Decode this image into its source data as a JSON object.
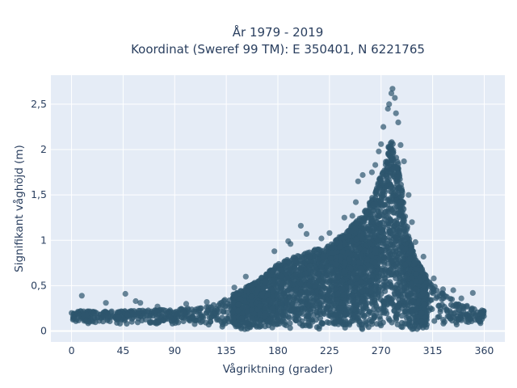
{
  "chart_data": {
    "type": "scatter",
    "title_line1": "År 1979 - 2019",
    "title_line2": "Koordinat (Sweref 99 TM): E 350401, N 6221765",
    "xlabel": "Vågriktning (grader)",
    "ylabel": "Signifikant våghöjd (m)",
    "xlim": [
      -18,
      378
    ],
    "ylim": [
      -0.12,
      2.82
    ],
    "xticks": [
      0,
      45,
      90,
      135,
      180,
      225,
      270,
      315,
      360
    ],
    "xtick_labels": [
      "0",
      "45",
      "90",
      "135",
      "180",
      "225",
      "270",
      "315",
      "360"
    ],
    "yticks": [
      0,
      0.5,
      1,
      1.5,
      2,
      2.5
    ],
    "ytick_labels": [
      "0",
      "0,5",
      "1",
      "1,5",
      "2",
      "2,5"
    ],
    "grid": true,
    "legend": "none",
    "colors": {
      "background": "#e5ecf6",
      "grid": "#ffffff",
      "marker": "#2e566e",
      "text": "#2a3f5f"
    },
    "envelope": {
      "x": [
        0,
        20,
        45,
        90,
        120,
        135,
        150,
        165,
        180,
        200,
        225,
        240,
        255,
        265,
        272,
        276,
        280,
        285,
        290,
        295,
        300,
        310,
        320,
        340,
        360
      ],
      "upper": [
        0.22,
        0.22,
        0.22,
        0.24,
        0.27,
        0.36,
        0.47,
        0.58,
        0.74,
        0.85,
        0.95,
        1.1,
        1.3,
        1.55,
        1.8,
        2.05,
        2.1,
        1.85,
        1.4,
        1.0,
        0.8,
        0.6,
        0.45,
        0.3,
        0.22
      ],
      "lower": [
        0.08,
        0.08,
        0.08,
        0.08,
        0.06,
        0.04,
        0.02,
        0.02,
        0.02,
        0.02,
        0.02,
        0.02,
        0.02,
        0.02,
        0.02,
        0.02,
        0.02,
        0.02,
        0.02,
        0.02,
        0.02,
        0.03,
        0.05,
        0.07,
        0.08
      ]
    },
    "outliers": [
      {
        "x": 9,
        "y": 0.39
      },
      {
        "x": 47,
        "y": 0.41
      },
      {
        "x": 56,
        "y": 0.33
      },
      {
        "x": 60,
        "y": 0.31
      },
      {
        "x": 200,
        "y": 1.16
      },
      {
        "x": 191,
        "y": 0.96
      },
      {
        "x": 189,
        "y": 0.99
      },
      {
        "x": 205,
        "y": 1.07
      },
      {
        "x": 218,
        "y": 1.02
      },
      {
        "x": 225,
        "y": 1.08
      },
      {
        "x": 238,
        "y": 1.25
      },
      {
        "x": 245,
        "y": 1.27
      },
      {
        "x": 248,
        "y": 1.42
      },
      {
        "x": 250,
        "y": 1.65
      },
      {
        "x": 254,
        "y": 1.72
      },
      {
        "x": 262,
        "y": 1.75
      },
      {
        "x": 265,
        "y": 1.83
      },
      {
        "x": 268,
        "y": 1.98
      },
      {
        "x": 270,
        "y": 2.06
      },
      {
        "x": 272,
        "y": 2.25
      },
      {
        "x": 277,
        "y": 2.5
      },
      {
        "x": 279,
        "y": 2.62
      },
      {
        "x": 280,
        "y": 2.67
      },
      {
        "x": 282,
        "y": 2.57
      },
      {
        "x": 276,
        "y": 2.45
      },
      {
        "x": 283,
        "y": 2.4
      },
      {
        "x": 285,
        "y": 2.3
      },
      {
        "x": 287,
        "y": 2.05
      },
      {
        "x": 290,
        "y": 1.87
      },
      {
        "x": 294,
        "y": 1.5
      },
      {
        "x": 297,
        "y": 1.2
      },
      {
        "x": 300,
        "y": 0.98
      },
      {
        "x": 307,
        "y": 0.82
      },
      {
        "x": 316,
        "y": 0.58
      },
      {
        "x": 324,
        "y": 0.46
      },
      {
        "x": 333,
        "y": 0.45
      },
      {
        "x": 350,
        "y": 0.42
      },
      {
        "x": 340,
        "y": 0.36
      },
      {
        "x": 152,
        "y": 0.6
      },
      {
        "x": 142,
        "y": 0.48
      },
      {
        "x": 118,
        "y": 0.32
      },
      {
        "x": 100,
        "y": 0.3
      },
      {
        "x": 30,
        "y": 0.31
      },
      {
        "x": 75,
        "y": 0.27
      },
      {
        "x": 177,
        "y": 0.88
      }
    ]
  }
}
